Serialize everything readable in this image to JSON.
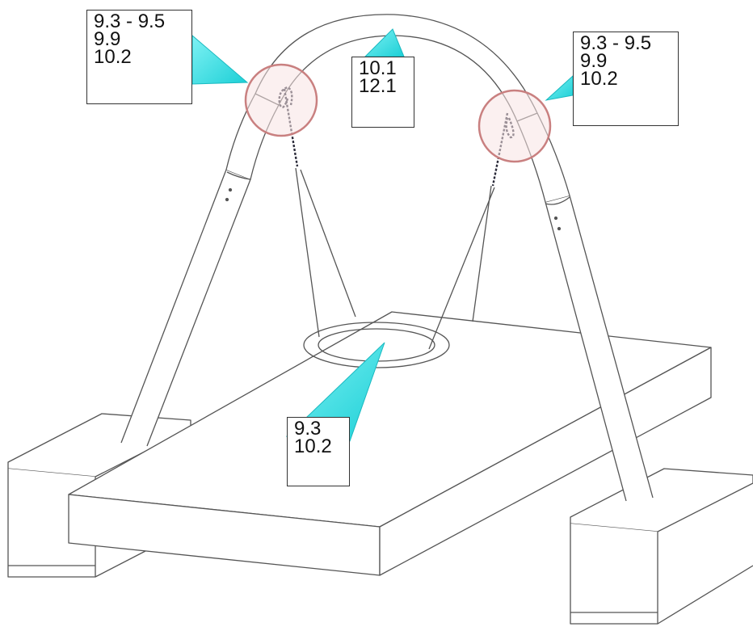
{
  "colors": {
    "line": "#555555",
    "pointer": "#2fd6dc",
    "highlight_ring": "#c98080",
    "highlight_fill": "#f7e4e4",
    "chain": "#2b2b3a"
  },
  "callouts": {
    "top_left": {
      "lines": [
        "9.3 - 9.5",
        "9.9",
        "10.2"
      ]
    },
    "top_right": {
      "lines": [
        "9.3 - 9.5",
        "9.9",
        "10.2"
      ]
    },
    "top_mid": {
      "lines": [
        "10.1",
        "12.1"
      ]
    },
    "bottom": {
      "lines": [
        "9.3",
        "10.2"
      ]
    }
  }
}
